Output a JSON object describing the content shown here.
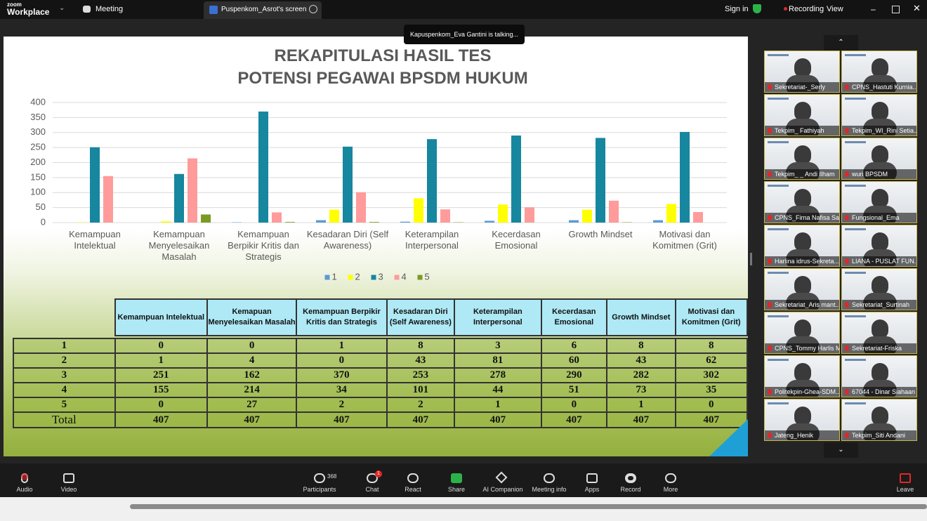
{
  "top_bar": {
    "logo_small": "zoom",
    "logo": "Workplace",
    "menu": "Meeting",
    "tab": "Puspenkom_Asrot's screen",
    "sign_in": "Sign in",
    "recording": "Recording",
    "view": "View"
  },
  "speaker_notice": "Kapuspenkom_Eva Gantini is talking...",
  "chart_data": {
    "type": "bar",
    "title": "REKAPITULASI HASIL TES POTENSI PEGAWAI BPSDM HUKUM",
    "categories": [
      "Kemampuan Intelektual",
      "Kemampuan Menyelesaikan Masalah",
      "Kemampuan Berpikir Kritis dan Strategis",
      "Kesadaran Diri (Self Awareness)",
      "Keterampilan Interpersonal",
      "Kecerdasan Emosional",
      "Growth Mindset",
      "Motivasi dan Komitmen (Grit)"
    ],
    "series": [
      {
        "name": "1",
        "color": "#5b9bd5",
        "values": [
          0,
          0,
          1,
          8,
          3,
          6,
          8,
          8
        ]
      },
      {
        "name": "2",
        "color": "#ffff00",
        "values": [
          1,
          4,
          0,
          43,
          81,
          60,
          43,
          62
        ]
      },
      {
        "name": "3",
        "color": "#17869f",
        "values": [
          251,
          162,
          370,
          253,
          278,
          290,
          282,
          302
        ]
      },
      {
        "name": "4",
        "color": "#ff9b9b",
        "values": [
          155,
          214,
          34,
          101,
          44,
          51,
          73,
          35
        ]
      },
      {
        "name": "5",
        "color": "#7b9a24",
        "values": [
          0,
          27,
          2,
          2,
          1,
          0,
          1,
          0
        ]
      }
    ],
    "ylim": [
      0,
      400
    ],
    "yticks": [
      0,
      50,
      100,
      150,
      200,
      250,
      300,
      350,
      400
    ],
    "grid": true,
    "legend": "bottom"
  },
  "table": {
    "headers": [
      "Kemampuan Intelektual",
      "Kemapuan Menyelesaikan Masalah",
      "Kemampuan Berpikir Kritis dan Strategis",
      "Kesadaran Diri (Self Awareness)",
      "Keterampilan Interpersonal",
      "Kecerdasan Emosional",
      "Growth Mindset",
      "Motivasi dan Komitmen (Grit)"
    ],
    "total_label": "Total",
    "totals": [
      407,
      407,
      407,
      407,
      407,
      407,
      407,
      407
    ]
  },
  "participants": [
    "Sekretariat-_Serly",
    "CPNS_Hastuti Kurnia...",
    "Tekpim_ Fathiyah",
    "Tekpim_WI_Rini Setia...",
    "Tekpim_ _ Andi Ilham",
    "wuri BPSDM",
    "CPNS_Firna Nafisa Sa...",
    "Fungsional_Ema",
    "Harlina idrus-Sekreta...",
    "LIANA - PUSLAT FUN...",
    "Sekretariat_Aris mant...",
    "Sekretariat_Surtinah",
    "CPNS_Tommy Harlis M...",
    "Sekretariat-Friska",
    "Politekpin-Ghea-SDM...",
    "67044 - Dinar Siahaan",
    "Jateng_Henik",
    "Tekpim_Siti Andani"
  ],
  "toolbar": {
    "audio": "Audio",
    "video": "Video",
    "participants": "Participants",
    "participant_count": 368,
    "chat": "Chat",
    "chat_badge": 1,
    "react": "React",
    "share": "Share",
    "ai_companion": "AI Companion",
    "meeting_info": "Meeting info",
    "apps": "Apps",
    "record": "Record",
    "more": "More",
    "leave": "Leave"
  }
}
